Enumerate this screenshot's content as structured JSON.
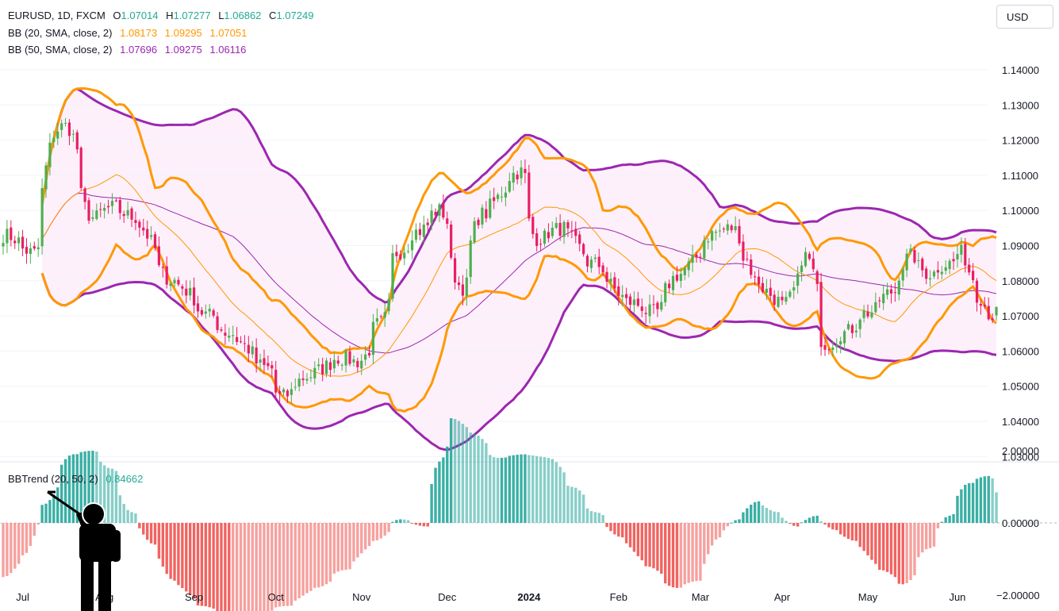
{
  "header": {
    "symbol": "EURUSD, 1D, FXCM",
    "ohlc": [
      {
        "key": "O",
        "value": "1.07014"
      },
      {
        "key": "H",
        "value": "1.07277"
      },
      {
        "key": "L",
        "value": "1.06862"
      },
      {
        "key": "C",
        "value": "1.07249"
      }
    ],
    "ohlc_color": "#22ab94"
  },
  "indicators": [
    {
      "label": "BB (20, SMA, close, 2)",
      "values": [
        "1.08173",
        "1.09295",
        "1.07051"
      ],
      "color": "#ff9800"
    },
    {
      "label": "BB (50, SMA, close, 2)",
      "values": [
        "1.07696",
        "1.09275",
        "1.06116"
      ],
      "color": "#9c27b0"
    }
  ],
  "currency_button": "USD",
  "oscillator": {
    "label": "BBTrend (20, 50, 2)",
    "value": "0.84662",
    "color": "#22ab94"
  },
  "icons": [
    "pointing-figure-icon"
  ],
  "colors": {
    "up": "#4caf50",
    "down": "#e91e63",
    "bb20": "#ff9800",
    "bb50": "#9c27b0",
    "bb50_fill": "#fdf0fa",
    "hist_pos": "#26a69a",
    "hist_neg": "#ef5350"
  },
  "chart_data": [
    {
      "type": "candlestick",
      "title": "EURUSD, 1D, FXCM",
      "ylim": [
        1.03,
        1.145
      ],
      "yticks": [
        "1.14000",
        "1.13000",
        "1.12000",
        "1.11000",
        "1.10000",
        "1.09000",
        "1.08000",
        "1.07000",
        "1.06000",
        "1.05000",
        "1.04000",
        "1.03000"
      ],
      "xticks": [
        "Jul",
        "Aug",
        "Sep",
        "Oct",
        "Nov",
        "Dec",
        "2024",
        "Feb",
        "Mar",
        "Apr",
        "May",
        "Jun"
      ],
      "last": {
        "open": 1.07014,
        "high": 1.07277,
        "low": 1.06862,
        "close": 1.07249
      },
      "price_path": [
        [
          "2023-06-26",
          1.093
        ],
        [
          "2023-07-06",
          1.088
        ],
        [
          "2023-07-14",
          1.123
        ],
        [
          "2023-07-18",
          1.124
        ],
        [
          "2023-07-27",
          1.098
        ],
        [
          "2023-08-04",
          1.101
        ],
        [
          "2023-08-11",
          1.098
        ],
        [
          "2023-08-25",
          1.08
        ],
        [
          "2023-09-08",
          1.07
        ],
        [
          "2023-09-14",
          1.065
        ],
        [
          "2023-09-29",
          1.055
        ],
        [
          "2023-10-03",
          1.047
        ],
        [
          "2023-10-13",
          1.053
        ],
        [
          "2023-10-24",
          1.058
        ],
        [
          "2023-10-31",
          1.057
        ],
        [
          "2023-11-08",
          1.068
        ],
        [
          "2023-11-14",
          1.088
        ],
        [
          "2023-11-21",
          1.094
        ],
        [
          "2023-11-29",
          1.1
        ],
        [
          "2023-12-07",
          1.078
        ],
        [
          "2023-12-14",
          1.099
        ],
        [
          "2023-12-28",
          1.111
        ],
        [
          "2024-01-03",
          1.092
        ],
        [
          "2024-01-12",
          1.095
        ],
        [
          "2024-01-23",
          1.085
        ],
        [
          "2024-02-05",
          1.074
        ],
        [
          "2024-02-14",
          1.071
        ],
        [
          "2024-02-23",
          1.082
        ],
        [
          "2024-03-08",
          1.094
        ],
        [
          "2024-03-13",
          1.095
        ],
        [
          "2024-03-19",
          1.086
        ],
        [
          "2024-03-21",
          1.08
        ],
        [
          "2024-04-01",
          1.073
        ],
        [
          "2024-04-09",
          1.087
        ],
        [
          "2024-04-16",
          1.062
        ],
        [
          "2024-04-22",
          1.065
        ],
        [
          "2024-05-01",
          1.071
        ],
        [
          "2024-05-10",
          1.077
        ],
        [
          "2024-05-16",
          1.087
        ],
        [
          "2024-05-23",
          1.082
        ],
        [
          "2024-05-30",
          1.085
        ],
        [
          "2024-06-04",
          1.088
        ],
        [
          "2024-06-07",
          1.081
        ],
        [
          "2024-06-10",
          1.076
        ],
        [
          "2024-06-14",
          1.07
        ],
        [
          "2024-06-17",
          1.0725
        ]
      ]
    },
    {
      "type": "bar",
      "title": "BBTrend (20, 50, 2)",
      "ylim": [
        -2.9,
        3.0
      ],
      "yticks": [
        "2.00000",
        "0.00000",
        "−2.00000"
      ],
      "last_value": 0.84662,
      "values_path": [
        [
          "2023-06-26",
          -1.5
        ],
        [
          "2023-07-03",
          -0.9
        ],
        [
          "2023-07-10",
          0.5
        ],
        [
          "2023-07-20",
          1.9
        ],
        [
          "2023-07-27",
          2.0
        ],
        [
          "2023-08-03",
          1.5
        ],
        [
          "2023-08-10",
          0.3
        ],
        [
          "2023-08-18",
          -0.6
        ],
        [
          "2023-08-25",
          -1.6
        ],
        [
          "2023-09-05",
          -2.3
        ],
        [
          "2023-09-14",
          -2.6
        ],
        [
          "2023-09-25",
          -2.5
        ],
        [
          "2023-10-05",
          -2.3
        ],
        [
          "2023-10-16",
          -1.8
        ],
        [
          "2023-10-26",
          -1.3
        ],
        [
          "2023-11-06",
          -0.5
        ],
        [
          "2023-11-15",
          0.1
        ],
        [
          "2023-11-24",
          -0.1
        ],
        [
          "2023-11-29",
          1.7
        ],
        [
          "2023-12-04",
          2.9
        ],
        [
          "2023-12-11",
          2.5
        ],
        [
          "2023-12-20",
          1.8
        ],
        [
          "2023-12-29",
          1.9
        ],
        [
          "2024-01-08",
          1.8
        ],
        [
          "2024-01-16",
          1.0
        ],
        [
          "2024-01-24",
          0.3
        ],
        [
          "2024-02-02",
          -0.4
        ],
        [
          "2024-02-12",
          -1.2
        ],
        [
          "2024-02-22",
          -1.8
        ],
        [
          "2024-03-01",
          -1.6
        ],
        [
          "2024-03-08",
          -0.4
        ],
        [
          "2024-03-15",
          0.1
        ],
        [
          "2024-03-22",
          0.6
        ],
        [
          "2024-03-29",
          0.3
        ],
        [
          "2024-04-05",
          -0.1
        ],
        [
          "2024-04-12",
          0.2
        ],
        [
          "2024-04-19",
          -0.2
        ],
        [
          "2024-04-26",
          -0.5
        ],
        [
          "2024-05-06",
          -1.3
        ],
        [
          "2024-05-14",
          -1.7
        ],
        [
          "2024-05-23",
          -0.7
        ],
        [
          "2024-05-30",
          0.2
        ],
        [
          "2024-06-06",
          1.1
        ],
        [
          "2024-06-13",
          1.3
        ],
        [
          "2024-06-17",
          0.85
        ]
      ]
    }
  ]
}
